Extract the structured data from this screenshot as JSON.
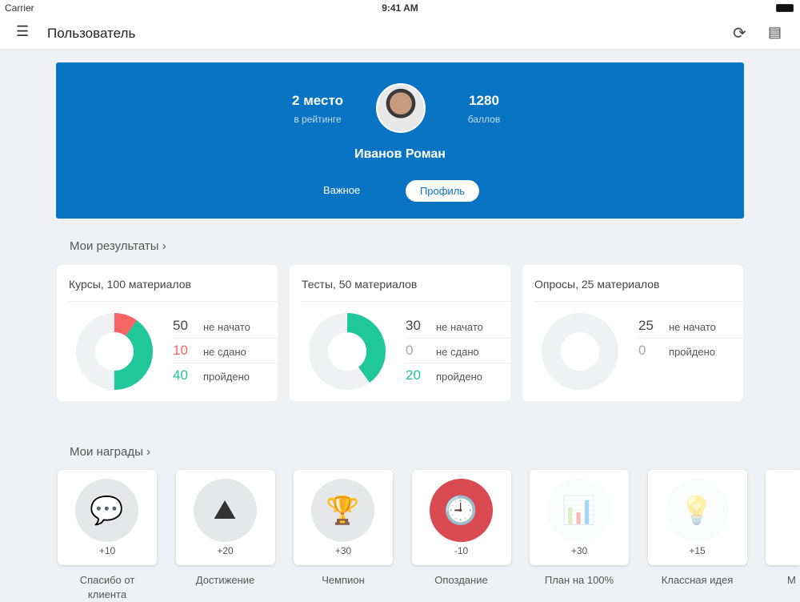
{
  "status": {
    "carrier": "Carrier",
    "time": "9:41 AM"
  },
  "nav": {
    "title": "Пользователь",
    "menu_icon": "hamburger-icon",
    "refresh_icon": "refresh-icon",
    "chat_icon": "message-icon"
  },
  "profile": {
    "rank_value": "2 место",
    "rank_label": "в рейтинге",
    "points_value": "1280",
    "points_label": "баллов",
    "name": "Иванов Роман",
    "tabs": [
      "Важное",
      "Профиль"
    ],
    "active_tab": "Профиль"
  },
  "results": {
    "title": "Мои результаты",
    "cards": [
      {
        "title": "Курсы, 100 материалов",
        "rows": [
          {
            "n": "50",
            "t": "не начато"
          },
          {
            "n": "10",
            "t": "не сдано"
          },
          {
            "n": "40",
            "t": "пройдено"
          }
        ],
        "failed": 10,
        "passed": 40,
        "total": 100
      },
      {
        "title": "Тесты, 50 материалов",
        "rows": [
          {
            "n": "30",
            "t": "не начато"
          },
          {
            "n": "0",
            "t": "не сдано"
          },
          {
            "n": "20",
            "t": "пройдено"
          }
        ],
        "failed": 0,
        "passed": 20,
        "total": 50
      },
      {
        "title": "Опросы, 25 материалов",
        "rows": [
          {
            "n": "25",
            "t": "не начато"
          },
          {
            "n": "0",
            "t": "пройдено"
          }
        ],
        "failed": 0,
        "passed": 0,
        "total": 25
      }
    ]
  },
  "colors": {
    "brand": "#0974c3",
    "failed": "#f56565",
    "passed": "#1fc79a",
    "empty": "#f0f1f3"
  },
  "awards": {
    "title": "Мои награды",
    "items": [
      {
        "points": "+10",
        "label": "Спасибо от клиента",
        "icon": "heart-chat-icon"
      },
      {
        "points": "+20",
        "label": "Достижение",
        "icon": "mountain-flag-icon"
      },
      {
        "points": "+30",
        "label": "Чемпион",
        "icon": "trophy-icon"
      },
      {
        "points": "-10",
        "label": "Опоздание",
        "icon": "clock-icon"
      },
      {
        "points": "+30",
        "label": "План на 100%",
        "icon": "chart-icon"
      },
      {
        "points": "+15",
        "label": "Классная идея",
        "icon": "lightbulb-icon"
      },
      {
        "points": "",
        "label": "М",
        "icon": ""
      }
    ]
  }
}
